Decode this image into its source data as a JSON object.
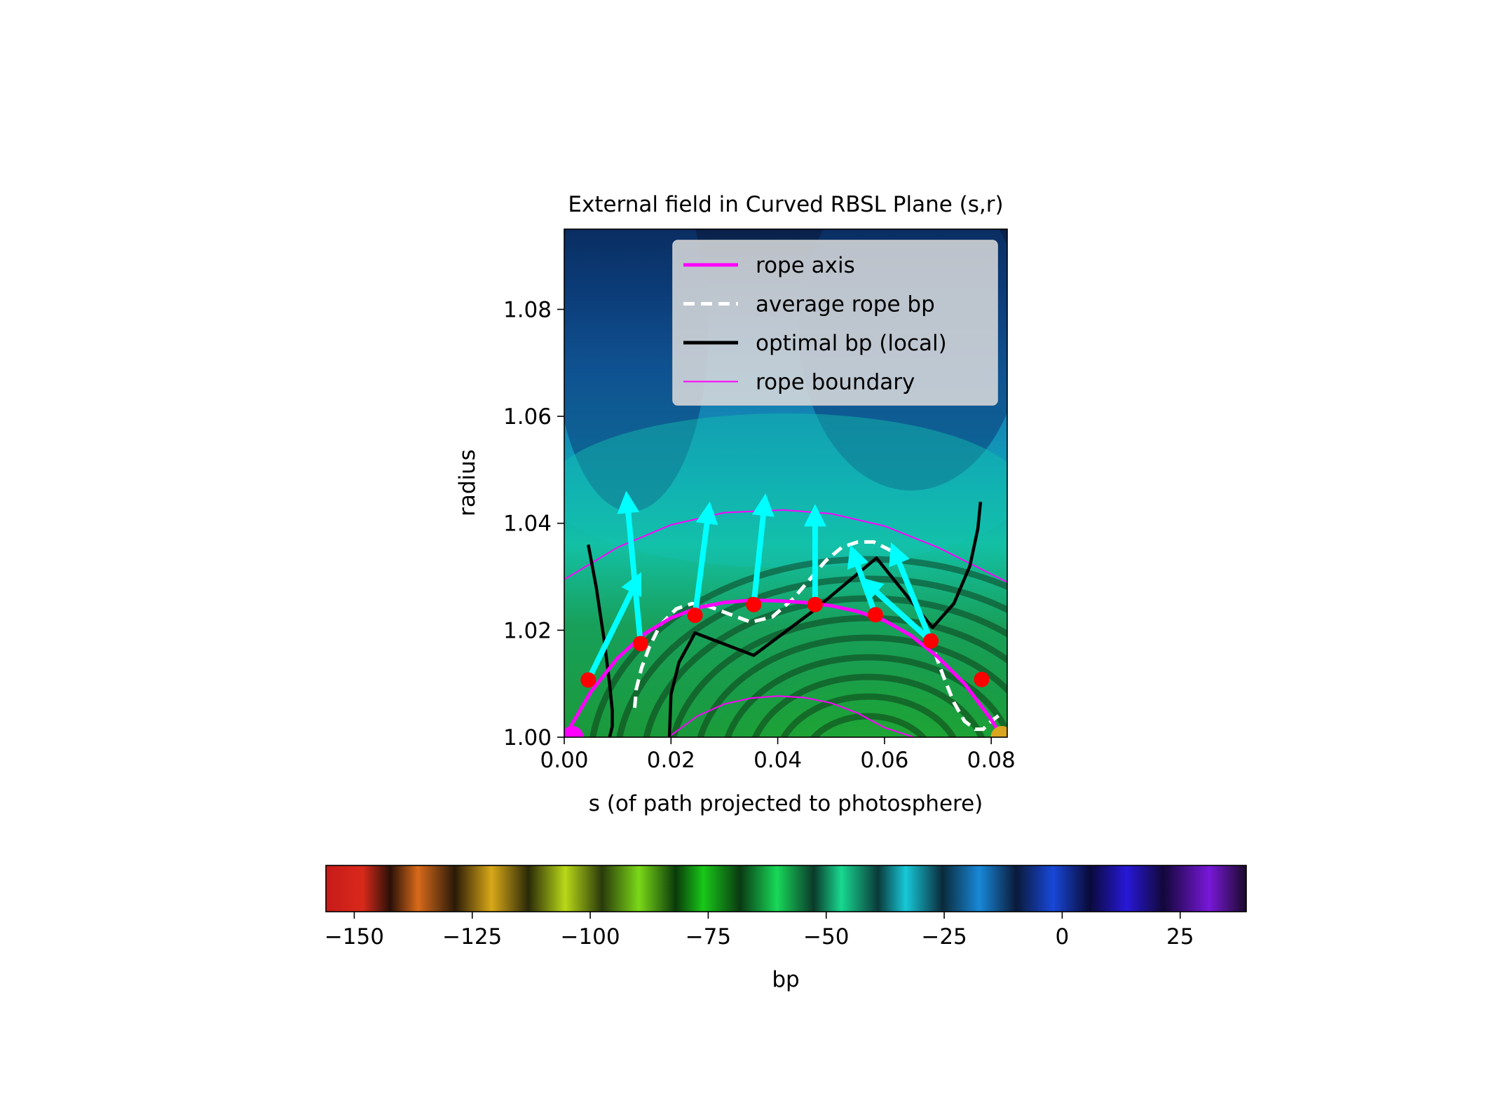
{
  "chart_data": {
    "type": "heatmap",
    "title": "External field in Curved RBSL Plane (s,r)",
    "xlabel": "s (of path projected to photosphere)",
    "ylabel": "radius",
    "xlim": [
      0.0,
      0.083
    ],
    "ylim": [
      1.0,
      1.095
    ],
    "xticks": [
      0.0,
      0.02,
      0.04,
      0.06,
      0.08
    ],
    "xtick_labels": [
      "0.00",
      "0.02",
      "0.04",
      "0.06",
      "0.08"
    ],
    "yticks": [
      1.0,
      1.02,
      1.04,
      1.06,
      1.08
    ],
    "ytick_labels": [
      "1.00",
      "1.02",
      "1.04",
      "1.06",
      "1.08"
    ],
    "grid": false,
    "legend_position": "upper-right",
    "legend": [
      {
        "label": "rope axis",
        "style": "solid-thick",
        "color": "#ff00ff"
      },
      {
        "label": "average rope bp",
        "style": "dashed",
        "color": "#ffffff"
      },
      {
        "label": "optimal bp (local)",
        "style": "solid-thick",
        "color": "#000000"
      },
      {
        "label": "rope boundary",
        "style": "solid-thin",
        "color": "#ff00ff"
      }
    ],
    "colorbar": {
      "label": "bp",
      "range": [
        -156,
        39
      ],
      "ticks": [
        -150,
        -125,
        -100,
        -75,
        -50,
        -25,
        0,
        25
      ],
      "tick_labels": [
        "−150",
        "−125",
        "−100",
        "−75",
        "−50",
        "−25",
        "0",
        "25"
      ],
      "orientation": "horizontal"
    },
    "series": [
      {
        "name": "rope axis",
        "color": "#ff00ff",
        "x": [
          0.0,
          0.005,
          0.01,
          0.015,
          0.02,
          0.025,
          0.03,
          0.035,
          0.04,
          0.045,
          0.05,
          0.055,
          0.06,
          0.065,
          0.07,
          0.075,
          0.08,
          0.082
        ],
        "y": [
          1.0,
          1.0085,
          1.0148,
          1.0193,
          1.0223,
          1.0242,
          1.0252,
          1.0256,
          1.0255,
          1.0252,
          1.0246,
          1.0235,
          1.0218,
          1.019,
          1.015,
          1.01,
          1.0033,
          1.0
        ]
      },
      {
        "name": "average rope bp",
        "color": "#ffffff",
        "x": [
          0.0132,
          0.0135,
          0.0145,
          0.016,
          0.018,
          0.021,
          0.024,
          0.027,
          0.031,
          0.035,
          0.039,
          0.043,
          0.046,
          0.049,
          0.052,
          0.055,
          0.058,
          0.061,
          0.063,
          0.065,
          0.067,
          0.069,
          0.071,
          0.073,
          0.075,
          0.077,
          0.0785,
          0.08,
          0.082
        ],
        "y": [
          1.0055,
          1.009,
          1.013,
          1.017,
          1.021,
          1.024,
          1.025,
          1.0245,
          1.023,
          1.0215,
          1.0225,
          1.026,
          1.0295,
          1.033,
          1.0355,
          1.0365,
          1.0365,
          1.035,
          1.032,
          1.0275,
          1.0225,
          1.017,
          1.0115,
          1.0065,
          1.003,
          1.0015,
          1.0015,
          1.003,
          1.0045
        ]
      },
      {
        "name": "optimal bp (local)",
        "color": "#000000",
        "segments": [
          {
            "x": [
              0.0045,
              0.006,
              0.0075,
              0.0085,
              0.009,
              0.009,
              0.0085
            ],
            "y": [
              1.036,
              1.028,
              1.018,
              1.01,
              1.005,
              1.002,
              1.0
            ]
          },
          {
            "x": [
              0.0197,
              0.02,
              0.0215,
              0.0245,
              0.0355,
              0.0465,
              0.0585,
              0.069,
              0.073,
              0.076,
              0.0775,
              0.078
            ],
            "y": [
              1.0,
              1.008,
              1.014,
              1.0195,
              1.0153,
              1.0235,
              1.0335,
              1.0205,
              1.025,
              1.032,
              1.039,
              1.044
            ]
          }
        ]
      },
      {
        "name": "rope boundary",
        "color": "#ff00ff",
        "segments": [
          {
            "x": [
              0.0,
              0.01,
              0.02,
              0.03,
              0.041,
              0.05,
              0.06,
              0.07,
              0.083
            ],
            "y": [
              1.0295,
              1.0355,
              1.0397,
              1.042,
              1.0425,
              1.0418,
              1.0395,
              1.0355,
              1.029
            ]
          },
          {
            "x": [
              0.0195,
              0.025,
              0.03,
              0.035,
              0.04,
              0.045,
              0.05,
              0.055,
              0.06,
              0.0655
            ],
            "y": [
              1.0,
              1.004,
              1.0062,
              1.0073,
              1.0077,
              1.0074,
              1.0064,
              1.0045,
              1.0018,
              1.0
            ]
          }
        ]
      },
      {
        "name": "sample points",
        "color": "#ff0000",
        "x": [
          0.0045,
          0.0143,
          0.0245,
          0.0355,
          0.047,
          0.0583,
          0.0687,
          0.0782
        ],
        "y": [
          1.0107,
          1.0175,
          1.0228,
          1.0248,
          1.0248,
          1.0229,
          1.018,
          1.0108
        ]
      },
      {
        "name": "field vectors",
        "color": "#00ffff",
        "vectors": [
          {
            "x0": 0.0045,
            "y0": 1.0107,
            "x1": 0.0135,
            "y1": 1.029
          },
          {
            "x0": 0.0143,
            "y0": 1.0175,
            "x1": 0.0118,
            "y1": 1.044
          },
          {
            "x0": 0.0245,
            "y0": 1.0228,
            "x1": 0.027,
            "y1": 1.042
          },
          {
            "x0": 0.0355,
            "y0": 1.0248,
            "x1": 0.0375,
            "y1": 1.0435
          },
          {
            "x0": 0.047,
            "y0": 1.0248,
            "x1": 0.047,
            "y1": 1.0415
          },
          {
            "x0": 0.0583,
            "y0": 1.0229,
            "x1": 0.0543,
            "y1": 1.034
          },
          {
            "x0": 0.0687,
            "y0": 1.018,
            "x1": 0.057,
            "y1": 1.0285
          },
          {
            "x0": 0.0687,
            "y0": 1.018,
            "x1": 0.062,
            "y1": 1.0345
          }
        ]
      },
      {
        "name": "footpoints",
        "points": [
          {
            "x": 0.0015,
            "y": 1.0,
            "color": "#ff00ff"
          },
          {
            "x": 0.082,
            "y": 1.0,
            "color": "#daa520"
          }
        ]
      }
    ]
  }
}
